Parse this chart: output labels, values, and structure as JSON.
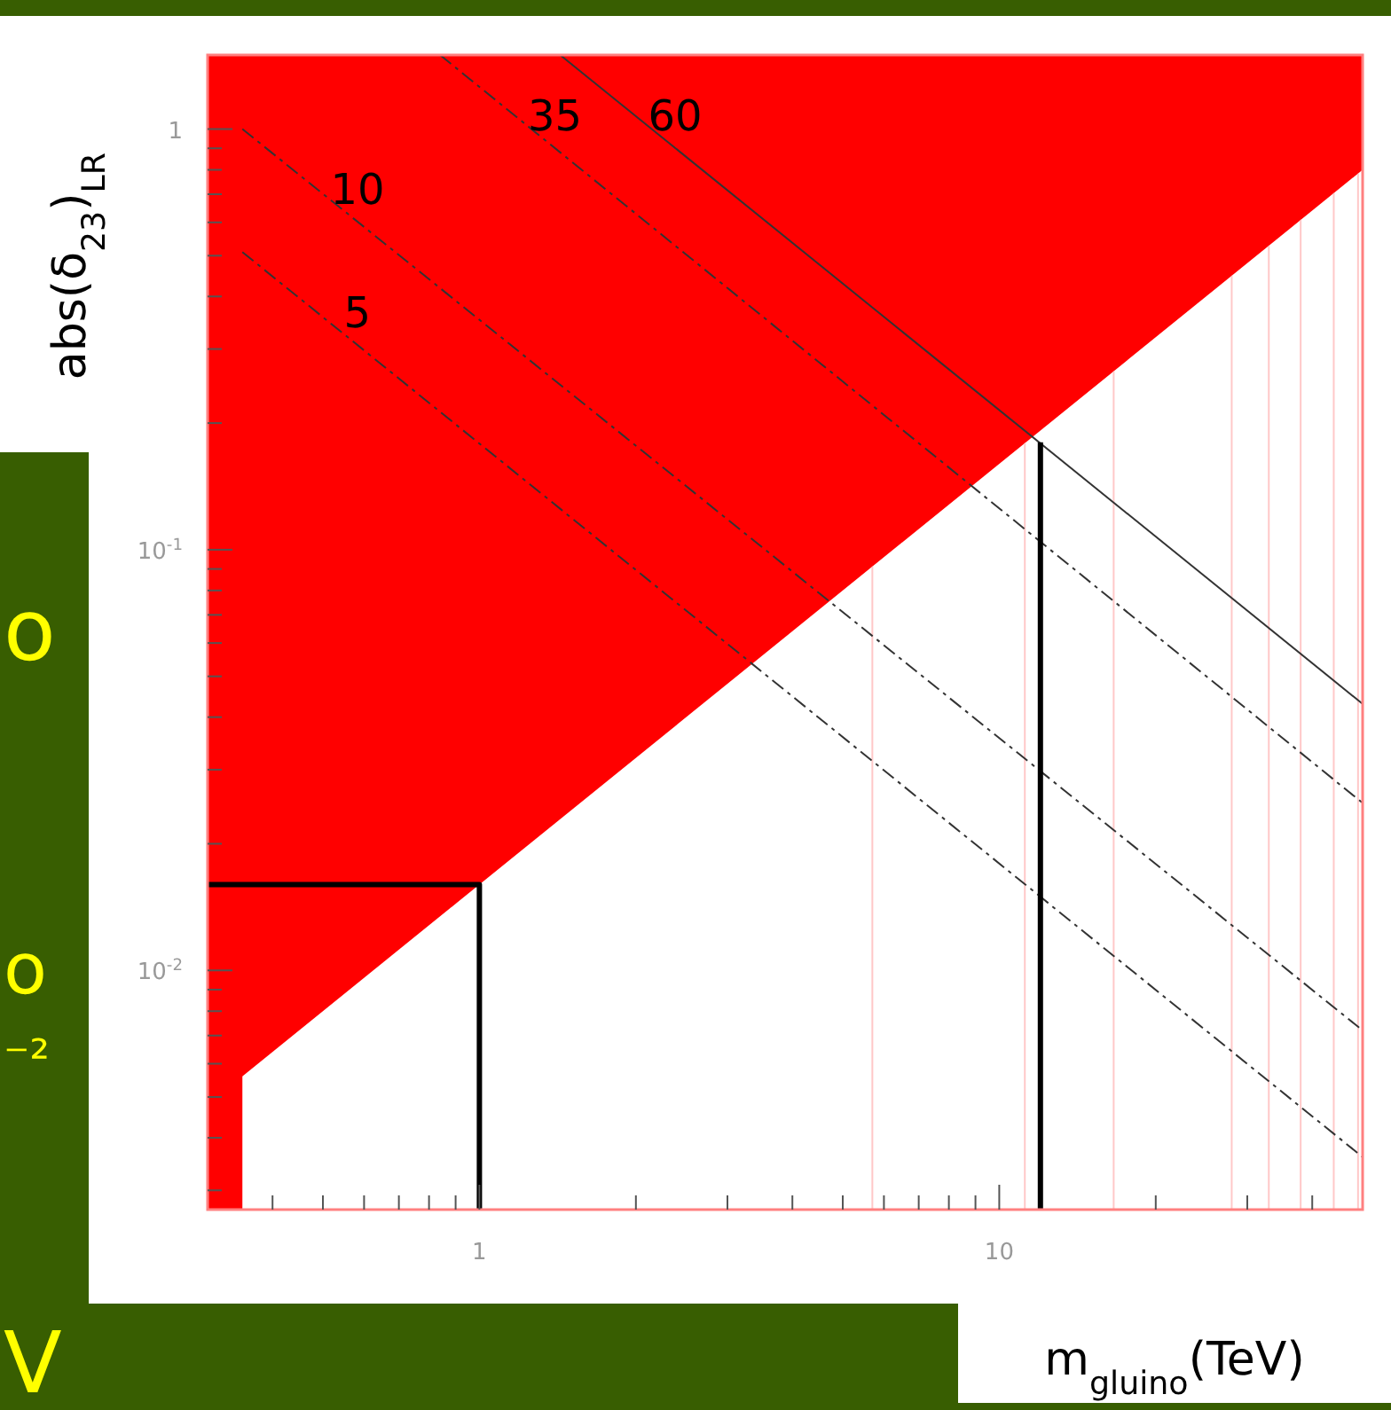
{
  "chart_data": {
    "type": "line",
    "xlabel": "m$_{gluino}$(TeV)",
    "ylabel": "abs(δ$_{23}$)$_{LR}$",
    "log": "xy",
    "xlim": [
      0.3,
      50
    ],
    "ylim": [
      0.0027,
      1.5
    ],
    "xticks": [
      {
        "value": 0.4,
        "label": null
      },
      {
        "value": 0.5,
        "label": null
      },
      {
        "value": 0.6,
        "label": null
      },
      {
        "value": 0.7,
        "label": null
      },
      {
        "value": 0.8,
        "label": null
      },
      {
        "value": 0.9,
        "label": null
      },
      1,
      {
        "value": 2,
        "label": null
      },
      {
        "value": 3,
        "label": null
      },
      {
        "value": 4,
        "label": null
      },
      {
        "value": 5,
        "label": null
      },
      {
        "value": 6,
        "label": null
      },
      {
        "value": 7,
        "label": null
      },
      {
        "value": 8,
        "label": null
      },
      {
        "value": 9,
        "label": null
      },
      10,
      {
        "value": 20,
        "label": null
      },
      {
        "value": 30,
        "label": null
      },
      {
        "value": 40,
        "label": null
      }
    ],
    "yticks": [
      {
        "value": 0.003,
        "label": null
      },
      {
        "value": 0.004,
        "label": null
      },
      {
        "value": 0.005,
        "label": null
      },
      {
        "value": 0.006,
        "label": null
      },
      {
        "value": 0.007,
        "label": null
      },
      {
        "value": 0.008,
        "label": null
      },
      {
        "value": 0.009,
        "label": null
      },
      {
        "value": 0.01,
        "label": "10$^{-2}$"
      },
      {
        "value": 0.02,
        "label": null
      },
      {
        "value": 0.03,
        "label": null
      },
      {
        "value": 0.04,
        "label": null
      },
      {
        "value": 0.05,
        "label": null
      },
      {
        "value": 0.06,
        "label": null
      },
      {
        "value": 0.07,
        "label": null
      },
      {
        "value": 0.08,
        "label": null
      },
      {
        "value": 0.09,
        "label": null
      },
      {
        "value": 0.1,
        "label": "10$^{-1}$"
      },
      {
        "value": 0.2,
        "label": null
      },
      {
        "value": 0.3,
        "label": null
      },
      {
        "value": 0.4,
        "label": null
      },
      {
        "value": 0.5,
        "label": null
      },
      {
        "value": 0.6,
        "label": null
      },
      {
        "value": 0.7,
        "label": null
      },
      {
        "value": 0.8,
        "label": null
      },
      {
        "value": 0.9,
        "label": null
      },
      1
    ],
    "bands": [
      {
        "axis": "y",
        "from": 0.0027,
        "to": 1.5,
        "color": "#ff0000"
      }
    ],
    "ref_lines": [
      {
        "axis": "x",
        "value": 5.7,
        "color": "#ffc8c8"
      },
      {
        "axis": "x",
        "value": 11.2,
        "color": "#ffc8c8"
      },
      {
        "axis": "x",
        "value": 16.6,
        "color": "#ffc8c8"
      },
      {
        "axis": "x",
        "value": 28,
        "color": "#ffc8c8"
      },
      {
        "axis": "x",
        "value": 33,
        "color": "#ffc8c8"
      },
      {
        "axis": "x",
        "value": 38,
        "color": "#ffc8c8"
      },
      {
        "axis": "x",
        "value": 44,
        "color": "#ffc8c8"
      },
      {
        "axis": "x",
        "value": 49,
        "color": "#ffc8c8"
      }
    ],
    "series": [
      {
        "type": "area",
        "color": "#ffffff",
        "x": [
          0.35,
          50
        ],
        "values": [
          0.0056,
          0.8
        ]
      },
      {
        "name": "5",
        "color": "#333333",
        "line_style": "dashed",
        "x": [
          0.35,
          50
        ],
        "values": [
          0.51,
          0.0036
        ]
      },
      {
        "name": "10",
        "color": "#333333",
        "line_style": "dashed",
        "x": [
          0.35,
          50
        ],
        "values": [
          1.0,
          0.0072
        ]
      },
      {
        "name": "35",
        "color": "#333333",
        "line_style": "dashed",
        "x": [
          0.84,
          50
        ],
        "values": [
          1.5,
          0.025
        ]
      },
      {
        "name": "60",
        "color": "#333333",
        "line_style": "solid",
        "x": [
          1.43,
          50
        ],
        "values": [
          1.5,
          0.043
        ]
      },
      {
        "color": "#000000",
        "line_style": "solid",
        "x": [
          0.3,
          1,
          1
        ],
        "values": [
          0.016,
          0.016,
          0.0027
        ]
      },
      {
        "color": "#000000",
        "line_style": "solid",
        "x": [
          12,
          12
        ],
        "values": [
          0.18,
          0.0027
        ]
      }
    ],
    "annotations": [
      "o",
      "o",
      "⁻²",
      "V"
    ]
  }
}
